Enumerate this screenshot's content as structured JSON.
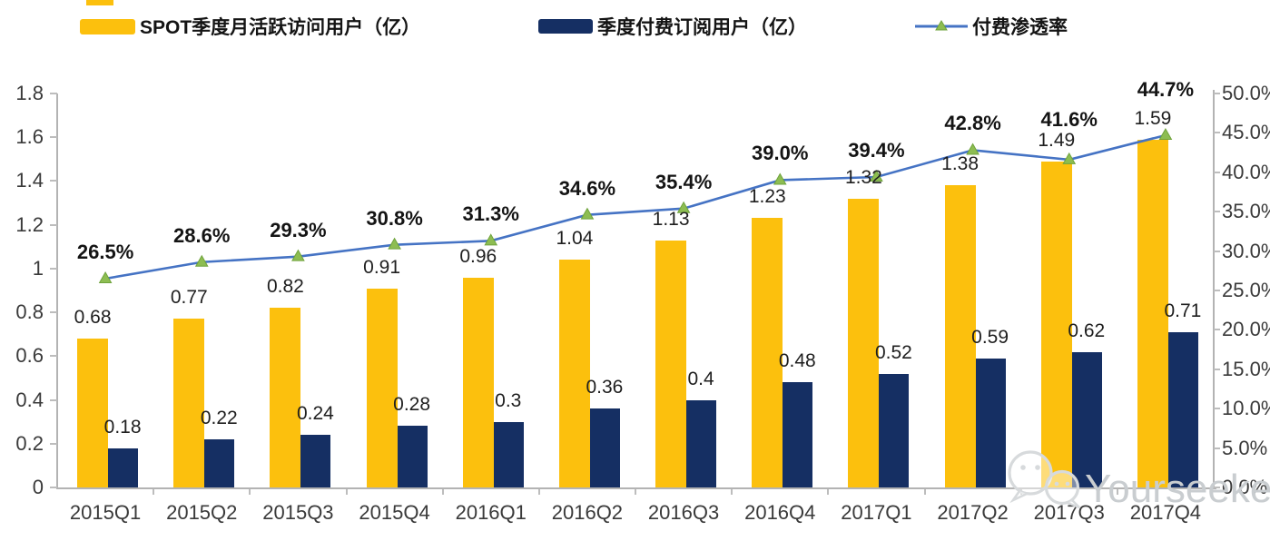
{
  "legend": {
    "items": [
      {
        "label": "SPOT季度月活跃访问用户（亿）",
        "swatch": "bar",
        "color": "#FCC00D"
      },
      {
        "label": "季度付费订阅用户（亿）",
        "swatch": "bar",
        "color": "#152F63"
      },
      {
        "label": "付费渗透率",
        "swatch": "line",
        "color": "#4573C4",
        "marker_color": "#8DBD52",
        "marker_border": "#6FA33C"
      }
    ]
  },
  "chart_data": {
    "type": "bar",
    "subtype": "combo-bar-line-dual-axis",
    "categories": [
      "2015Q1",
      "2015Q2",
      "2015Q3",
      "2015Q4",
      "2016Q1",
      "2016Q2",
      "2016Q3",
      "2016Q4",
      "2017Q1",
      "2017Q2",
      "2017Q3",
      "2017Q4"
    ],
    "series": [
      {
        "name": "SPOT季度月活跃访问用户（亿）",
        "type": "bar",
        "axis": "left",
        "color": "#FCC00D",
        "values": [
          0.68,
          0.77,
          0.82,
          0.91,
          0.96,
          1.04,
          1.13,
          1.23,
          1.32,
          1.38,
          1.49,
          1.59
        ],
        "labels": [
          "0.68",
          "0.77",
          "0.82",
          "0.91",
          "0.96",
          "1.04",
          "1.13",
          "1.23",
          "1.32",
          "1.38",
          "1.49",
          "1.59"
        ]
      },
      {
        "name": "季度付费订阅用户（亿）",
        "type": "bar",
        "axis": "left",
        "color": "#152F63",
        "values": [
          0.18,
          0.22,
          0.24,
          0.28,
          0.3,
          0.36,
          0.4,
          0.48,
          0.52,
          0.59,
          0.62,
          0.71
        ],
        "labels": [
          "0.18",
          "0.22",
          "0.24",
          "0.28",
          "0.3",
          "0.36",
          "0.4",
          "0.48",
          "0.52",
          "0.59",
          "0.62",
          "0.71"
        ]
      },
      {
        "name": "付费渗透率",
        "type": "line",
        "axis": "right",
        "color": "#4573C4",
        "marker": "triangle",
        "marker_color": "#8DBD52",
        "marker_border": "#6FA33C",
        "values": [
          26.5,
          28.6,
          29.3,
          30.8,
          31.3,
          34.6,
          35.4,
          39.0,
          39.4,
          42.8,
          41.6,
          44.7
        ],
        "labels": [
          "26.5%",
          "28.6%",
          "29.3%",
          "30.8%",
          "31.3%",
          "34.6%",
          "35.4%",
          "39.0%",
          "39.4%",
          "42.8%",
          "41.6%",
          "44.7%"
        ]
      }
    ],
    "left_axis": {
      "min": 0,
      "max": 1.8,
      "step": 0.2,
      "ticks": [
        "0",
        "0.2",
        "0.4",
        "0.6",
        "0.8",
        "1",
        "1.2",
        "1.4",
        "1.6",
        "1.8"
      ]
    },
    "right_axis": {
      "min": 0,
      "max": 50,
      "step": 5,
      "ticks": [
        "0.0%",
        "5.0%",
        "10.0%",
        "15.0%",
        "20.0%",
        "25.0%",
        "30.0%",
        "35.0%",
        "40.0%",
        "45.0%",
        "50.0%"
      ]
    },
    "grid": false,
    "legend_position": "top",
    "title": "",
    "xlabel": "",
    "ylabel": ""
  },
  "watermark": {
    "text": "Yourseeker",
    "icon": "wechat-icon"
  }
}
